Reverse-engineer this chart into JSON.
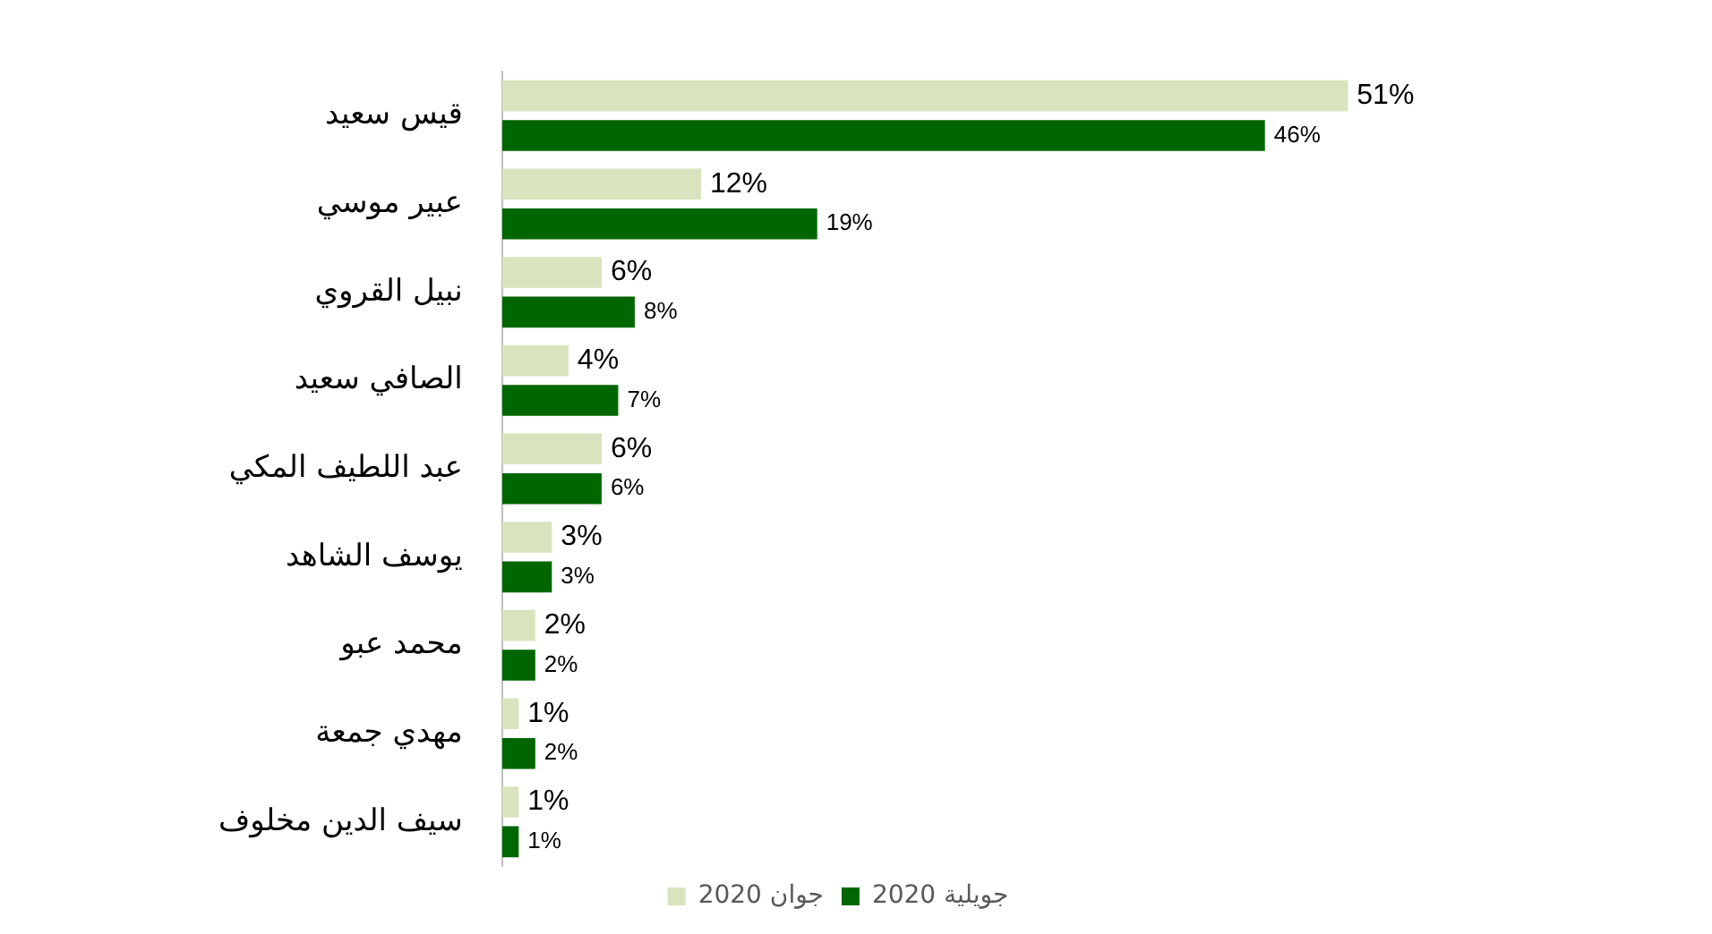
{
  "chart_data": {
    "type": "bar",
    "orientation": "horizontal",
    "categories": [
      "قيس سعيد",
      "عبير موسي",
      "نبيل القروي",
      "الصافي سعيد",
      "عبد اللطيف المكي",
      "يوسف الشاهد",
      "محمد عبو",
      "مهدي جمعة",
      "سيف الدين مخلوف"
    ],
    "series": [
      {
        "name": "جوان 2020",
        "color": "#d7e4bd",
        "values": [
          51,
          12,
          6,
          4,
          6,
          3,
          2,
          1,
          1
        ],
        "value_labels": [
          "51%",
          "12%",
          "6%",
          "4%",
          "6%",
          "3%",
          "2%",
          "1%",
          "1%"
        ]
      },
      {
        "name": "جويلية 2020",
        "color": "#006600",
        "values": [
          46,
          19,
          8,
          7,
          6,
          3,
          2,
          2,
          1
        ],
        "value_labels": [
          "46%",
          "19%",
          "8%",
          "7%",
          "6%",
          "3%",
          "2%",
          "2%",
          "1%"
        ]
      }
    ],
    "tick_labels": "y",
    "legend": "bottom"
  }
}
